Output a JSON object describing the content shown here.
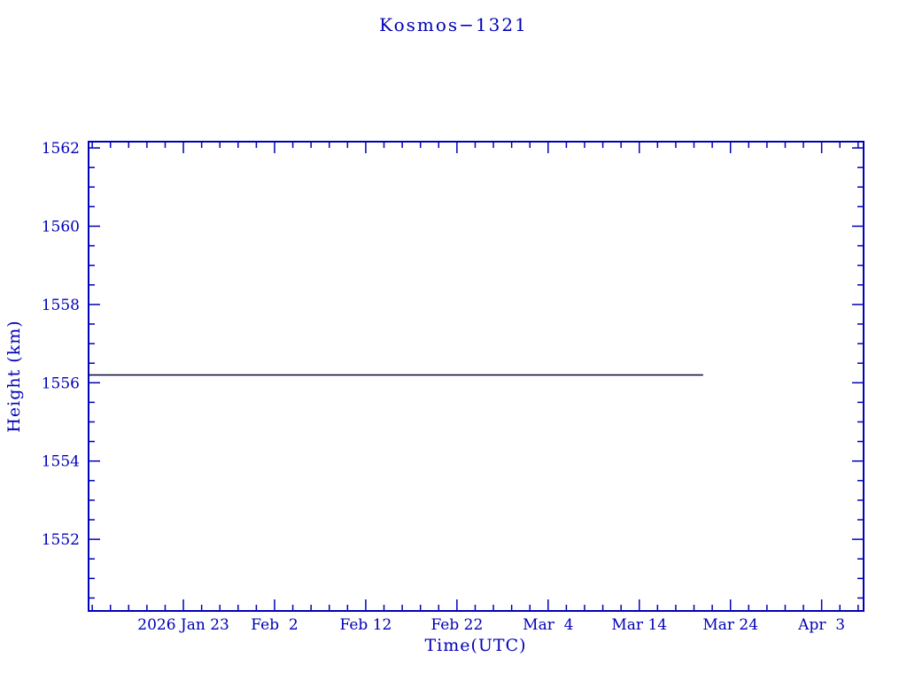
{
  "chart_data": {
    "type": "line",
    "title": "Kosmos−1321",
    "xlabel": "Time(UTC)",
    "ylabel": "Height (km)",
    "axis_color": "#0000b8",
    "line_color": "#000033",
    "x_unit": "days since 2026 Jan 23",
    "x_domain": [
      -10.4,
      74.6
    ],
    "ylim": [
      1550.17,
      1562.16
    ],
    "x_ticks": [
      {
        "pos": 0,
        "label": "2026 Jan 23"
      },
      {
        "pos": 10,
        "label": "Feb  2"
      },
      {
        "pos": 20,
        "label": "Feb 12"
      },
      {
        "pos": 30,
        "label": "Feb 22"
      },
      {
        "pos": 40,
        "label": "Mar  4"
      },
      {
        "pos": 50,
        "label": "Mar 14"
      },
      {
        "pos": 60,
        "label": "Mar 24"
      },
      {
        "pos": 70,
        "label": "Apr  3"
      }
    ],
    "x_minor_step": 2,
    "y_ticks": [
      1552,
      1554,
      1556,
      1558,
      1560,
      1562
    ],
    "y_minor_step": 0.5,
    "grid": false,
    "legend": "none",
    "series": [
      {
        "name": "height-km",
        "x": [
          -10.4,
          57.0
        ],
        "y": [
          1556.2,
          1556.2
        ]
      }
    ]
  }
}
